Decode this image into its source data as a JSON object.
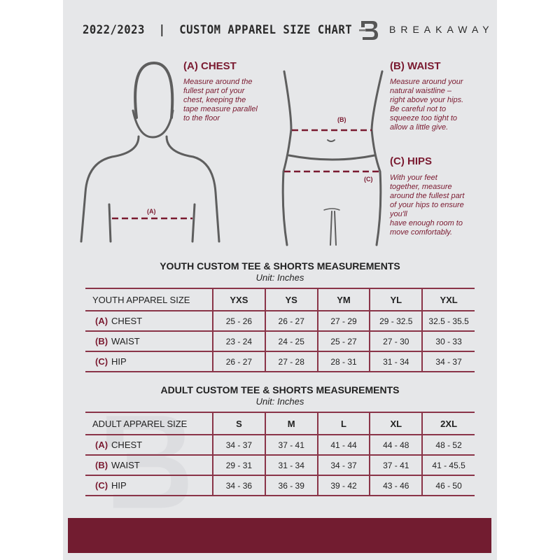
{
  "header": {
    "title": "2022/2023  |  CUSTOM APPAREL SIZE CHART",
    "brand": "BREAKAWAY",
    "logo_letter": "B"
  },
  "measures": {
    "chest": {
      "heading": "(A) CHEST",
      "marker": "(A)",
      "lines": [
        "Measure around the",
        "fullest part of your",
        "chest, keeping the",
        "tape measure parallel",
        "to the floor"
      ]
    },
    "waist": {
      "heading": "(B) WAIST",
      "marker": "(B)",
      "lines": [
        "Measure around your",
        "natural waistline –",
        "right above your hips.",
        "Be careful not to",
        "squeeze too tight to",
        "allow a little give."
      ]
    },
    "hips": {
      "heading": "(C) HIPS",
      "marker": "(C)",
      "lines": [
        "With your feet",
        "together, measure",
        "around the fullest part",
        "of your hips to ensure",
        "you'll",
        "have enough room to",
        "move comfortably."
      ]
    }
  },
  "youth": {
    "title": "YOUTH CUSTOM TEE & SHORTS MEASUREMENTS",
    "unit": "Unit: Inches",
    "header": [
      "YOUTH APPAREL SIZE",
      "YXS",
      "YS",
      "YM",
      "YL",
      "YXL"
    ],
    "rows": [
      {
        "letter": "(A)",
        "label": "CHEST",
        "values": [
          "25 - 26",
          "26 - 27",
          "27 - 29",
          "29 - 32.5",
          "32.5 - 35.5"
        ]
      },
      {
        "letter": "(B)",
        "label": "WAIST",
        "values": [
          "23 - 24",
          "24 - 25",
          "25 - 27",
          "27 - 30",
          "30 - 33"
        ]
      },
      {
        "letter": "(C)",
        "label": "HIP",
        "values": [
          "26 - 27",
          "27 - 28",
          "28 - 31",
          "31 - 34",
          "34 - 37"
        ]
      }
    ]
  },
  "adult": {
    "title": "ADULT CUSTOM TEE & SHORTS MEASUREMENTS",
    "unit": "Unit: Inches",
    "header": [
      "ADULT APPAREL SIZE",
      "S",
      "M",
      "L",
      "XL",
      "2XL"
    ],
    "rows": [
      {
        "letter": "(A)",
        "label": "CHEST",
        "values": [
          "34 - 37",
          "37 - 41",
          "41 - 44",
          "44 - 48",
          "48 - 52"
        ]
      },
      {
        "letter": "(B)",
        "label": "WAIST",
        "values": [
          "29 - 31",
          "31 - 34",
          "34 - 37",
          "37 - 41",
          "41 - 45.5"
        ]
      },
      {
        "letter": "(C)",
        "label": "HIP",
        "values": [
          "34 - 36",
          "36 - 39",
          "39 - 42",
          "43 - 46",
          "46 - 50"
        ]
      }
    ]
  },
  "colors": {
    "accent": "#721c30",
    "background": "#e6e7e9",
    "figure": "#5a5a5a"
  }
}
